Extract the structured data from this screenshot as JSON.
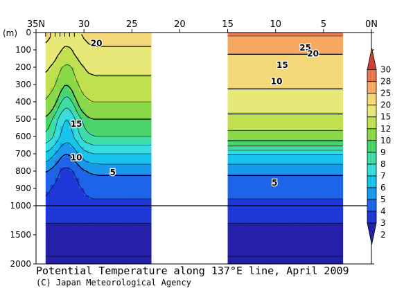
{
  "chart_data": {
    "type": "heatmap",
    "title": "Potential Temperature along 137°E line, April 2009",
    "credit": "(C) Japan Meteorological Agency",
    "x_ticks": [
      "35N",
      "30",
      "25",
      "20",
      "15",
      "10",
      "5",
      "0N"
    ],
    "x_tick_lat": [
      35,
      30,
      25,
      20,
      15,
      10,
      5,
      0
    ],
    "y_unit": "(m)",
    "y_ticks_upper": [
      "0",
      "100",
      "200",
      "300",
      "400",
      "500",
      "600",
      "700",
      "800",
      "900",
      "1000"
    ],
    "y_ticks_lower": [
      "1500",
      "2000"
    ],
    "y_tick_depth_upper": [
      0,
      100,
      200,
      300,
      400,
      500,
      600,
      700,
      800,
      900,
      1000
    ],
    "y_tick_depth_lower": [
      1500,
      2000
    ],
    "data_segments": [
      {
        "lat_start": 34,
        "lat_end": 23
      },
      {
        "lat_start": 15,
        "lat_end": 3
      }
    ],
    "colorbar": {
      "levels": [
        "2",
        "3",
        "4",
        "5",
        "6",
        "7",
        "8",
        "9",
        "10",
        "12",
        "15",
        "20",
        "25",
        "28",
        "30"
      ],
      "level_values": [
        2,
        3,
        4,
        5,
        6,
        7,
        8,
        9,
        10,
        12,
        15,
        20,
        25,
        28,
        30
      ],
      "colors": [
        "#2420a8",
        "#2038d8",
        "#1e64e8",
        "#1a98ec",
        "#18c4ec",
        "#38dcdc",
        "#40dca8",
        "#48d468",
        "#88d848",
        "#c0e050",
        "#e8e878",
        "#f4d878",
        "#f4a860",
        "#e87850",
        "#d04030"
      ]
    },
    "contour_labels": [
      {
        "text": "20",
        "lat": 28.7,
        "depth": 60
      },
      {
        "text": "15",
        "lat": 30.8,
        "depth": 525
      },
      {
        "text": "10",
        "lat": 30.8,
        "depth": 720
      },
      {
        "text": "5",
        "lat": 27.0,
        "depth": 805
      },
      {
        "text": "25",
        "lat": 6.9,
        "depth": 85
      },
      {
        "text": "20",
        "lat": 6.1,
        "depth": 120
      },
      {
        "text": "15",
        "lat": 9.3,
        "depth": 185
      },
      {
        "text": "10",
        "lat": 9.9,
        "depth": 280
      },
      {
        "text": "5",
        "lat": 10.1,
        "depth": 865
      }
    ]
  }
}
